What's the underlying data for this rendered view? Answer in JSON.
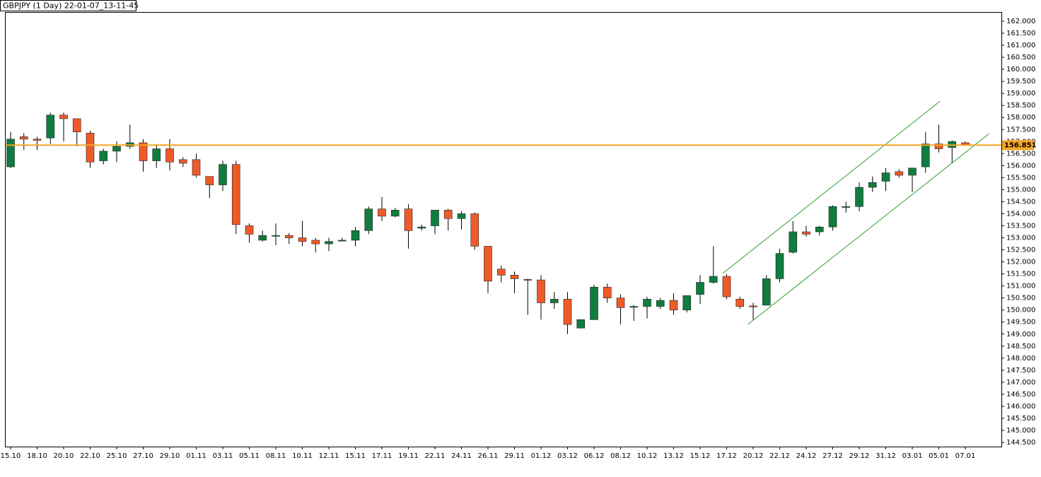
{
  "chart_data": {
    "type": "candlestick",
    "title": "GBPJPY (1 Day) 22-01-07_13-11-45",
    "categories": [
      "15.10",
      null,
      "18.10",
      null,
      "20.10",
      null,
      "22.10",
      null,
      "25.10",
      null,
      "27.10",
      null,
      "29.10",
      null,
      "01.11",
      null,
      "03.11",
      null,
      "05.11",
      null,
      "08.11",
      null,
      "10.11",
      null,
      "12.11",
      null,
      "15.11",
      null,
      "17.11",
      null,
      "19.11",
      null,
      "22.11",
      null,
      "24.11",
      null,
      "26.11",
      null,
      "29.11",
      null,
      "01.12",
      null,
      "03.12",
      null,
      "06.12",
      null,
      "08.12",
      null,
      "10.12",
      null,
      "13.12",
      null,
      "15.12",
      null,
      "17.12",
      null,
      "20.12",
      null,
      "22.12",
      null,
      "24.12",
      null,
      "27.12",
      null,
      "29.12",
      null,
      "31.12",
      null,
      "03.01",
      null,
      "05.01",
      null,
      "07.01"
    ],
    "open": [
      155.95,
      157.2,
      157.1,
      157.15,
      158.1,
      157.95,
      157.35,
      156.2,
      156.6,
      156.8,
      156.95,
      156.2,
      156.7,
      156.25,
      156.25,
      155.55,
      155.2,
      156.05,
      153.5,
      152.9,
      153.1,
      153.1,
      153.0,
      152.9,
      152.75,
      152.9,
      152.9,
      153.3,
      154.2,
      153.9,
      154.2,
      153.4,
      153.5,
      154.15,
      153.8,
      154.0,
      152.65,
      151.7,
      151.45,
      151.27,
      151.25,
      150.3,
      150.45,
      149.25,
      149.6,
      150.95,
      150.5,
      150.15,
      150.15,
      150.15,
      150.4,
      150.0,
      150.65,
      151.15,
      151.4,
      150.45,
      150.17,
      150.2,
      151.3,
      152.4,
      153.25,
      153.25,
      153.45,
      154.3,
      154.3,
      155.1,
      155.35,
      155.75,
      155.6,
      155.95,
      156.9,
      156.75,
      156.95
    ],
    "close": [
      157.1,
      157.1,
      157.05,
      158.1,
      157.95,
      157.4,
      156.15,
      156.6,
      156.8,
      156.95,
      156.2,
      156.7,
      156.15,
      156.1,
      155.6,
      155.2,
      156.05,
      153.55,
      153.15,
      153.1,
      153.1,
      153.0,
      152.85,
      152.75,
      152.85,
      152.9,
      153.3,
      154.2,
      153.9,
      154.15,
      153.3,
      153.45,
      154.15,
      153.8,
      154.0,
      152.65,
      151.2,
      151.45,
      151.3,
      151.25,
      150.3,
      150.45,
      149.4,
      149.6,
      150.95,
      150.5,
      150.1,
      150.15,
      150.45,
      150.4,
      150.0,
      150.6,
      151.15,
      151.4,
      150.55,
      150.15,
      150.15,
      151.3,
      152.35,
      153.25,
      153.15,
      153.45,
      154.3,
      154.3,
      155.1,
      155.3,
      155.7,
      155.6,
      155.9,
      156.9,
      156.7,
      157.0,
      156.87
    ],
    "high": [
      157.4,
      157.35,
      157.2,
      158.2,
      158.2,
      157.95,
      157.45,
      156.7,
      157.0,
      157.7,
      157.1,
      156.9,
      157.1,
      156.35,
      156.5,
      155.55,
      156.2,
      156.2,
      153.6,
      153.3,
      153.6,
      153.2,
      153.7,
      153.0,
      153.0,
      153.0,
      153.45,
      154.3,
      154.7,
      154.25,
      154.4,
      153.55,
      154.15,
      154.2,
      154.1,
      154.05,
      152.65,
      151.85,
      151.6,
      151.3,
      151.45,
      150.75,
      150.75,
      149.6,
      151.05,
      151.1,
      150.65,
      150.2,
      150.55,
      150.5,
      150.7,
      150.6,
      151.45,
      152.65,
      151.5,
      150.55,
      150.3,
      151.45,
      152.55,
      153.7,
      153.5,
      153.5,
      154.35,
      154.5,
      155.3,
      155.55,
      155.9,
      155.85,
      155.9,
      157.4,
      157.7,
      157.05,
      157.0
    ],
    "low": [
      155.9,
      156.65,
      156.65,
      156.9,
      157.0,
      156.8,
      155.9,
      156.05,
      156.15,
      156.7,
      155.75,
      155.9,
      155.8,
      155.95,
      155.5,
      154.65,
      154.95,
      153.15,
      152.8,
      152.85,
      152.7,
      152.75,
      152.65,
      152.4,
      152.45,
      152.85,
      152.65,
      153.15,
      153.7,
      153.85,
      152.55,
      153.3,
      153.15,
      153.3,
      153.35,
      152.5,
      150.7,
      151.15,
      150.7,
      149.8,
      149.6,
      150.05,
      149.0,
      149.25,
      149.6,
      150.3,
      149.4,
      149.55,
      149.65,
      150.05,
      149.8,
      149.9,
      150.25,
      151.1,
      150.45,
      150.05,
      149.6,
      150.2,
      151.15,
      152.35,
      153.05,
      153.1,
      153.3,
      154.05,
      154.1,
      154.9,
      154.95,
      155.5,
      154.9,
      155.7,
      156.55,
      156.1,
      156.85
    ],
    "up_color": "#0f7d3f",
    "down_color": "#f05a28",
    "ylim": [
      144.325,
      162.382
    ],
    "yticks": [
      {
        "value": 162,
        "label": "162.000"
      },
      {
        "value": 161.5,
        "label": "161.500"
      },
      {
        "value": 161,
        "label": "161.000"
      },
      {
        "value": 160.5,
        "label": "160.500"
      },
      {
        "value": 160,
        "label": "160.000"
      },
      {
        "value": 159.5,
        "label": "159.500"
      },
      {
        "value": 159,
        "label": "159.000"
      },
      {
        "value": 158.5,
        "label": "158.500"
      },
      {
        "value": 158,
        "label": "158.000"
      },
      {
        "value": 157.5,
        "label": "157.500"
      },
      {
        "value": 157,
        "label": "157.000"
      },
      {
        "value": 156.5,
        "label": "156.500"
      },
      {
        "value": 156,
        "label": "156.000"
      },
      {
        "value": 155.5,
        "label": "155.500"
      },
      {
        "value": 155,
        "label": "155.000"
      },
      {
        "value": 154.5,
        "label": "154.500"
      },
      {
        "value": 154,
        "label": "154.000"
      },
      {
        "value": 153.5,
        "label": "153.500"
      },
      {
        "value": 153,
        "label": "153.000"
      },
      {
        "value": 152.5,
        "label": "152.500"
      },
      {
        "value": 152,
        "label": "152.000"
      },
      {
        "value": 151.5,
        "label": "151.500"
      },
      {
        "value": 151,
        "label": "151.000"
      },
      {
        "value": 150.5,
        "label": "150.500"
      },
      {
        "value": 150,
        "label": "150.000"
      },
      {
        "value": 149.5,
        "label": "149.500"
      },
      {
        "value": 149,
        "label": "149.000"
      },
      {
        "value": 148.5,
        "label": "148.500"
      },
      {
        "value": 148,
        "label": "148.000"
      },
      {
        "value": 147.5,
        "label": "147.500"
      },
      {
        "value": 147,
        "label": "147.000"
      },
      {
        "value": 146.5,
        "label": "146.500"
      },
      {
        "value": 146,
        "label": "146.000"
      },
      {
        "value": 145.5,
        "label": "145.500"
      },
      {
        "value": 145,
        "label": "145.000"
      },
      {
        "value": 144.5,
        "label": "144.500"
      }
    ],
    "price_line": {
      "value": 156.851,
      "label": "156.851",
      "color": "#f5a623"
    },
    "trendlines": [
      {
        "x": [
          53.7,
          70.1
        ],
        "y": [
          151.52,
          158.68
        ],
        "color": "#2e9e2e"
      },
      {
        "x": [
          55.6,
          73.8
        ],
        "y": [
          149.4,
          157.33
        ],
        "color": "#2e9e2e"
      }
    ]
  }
}
